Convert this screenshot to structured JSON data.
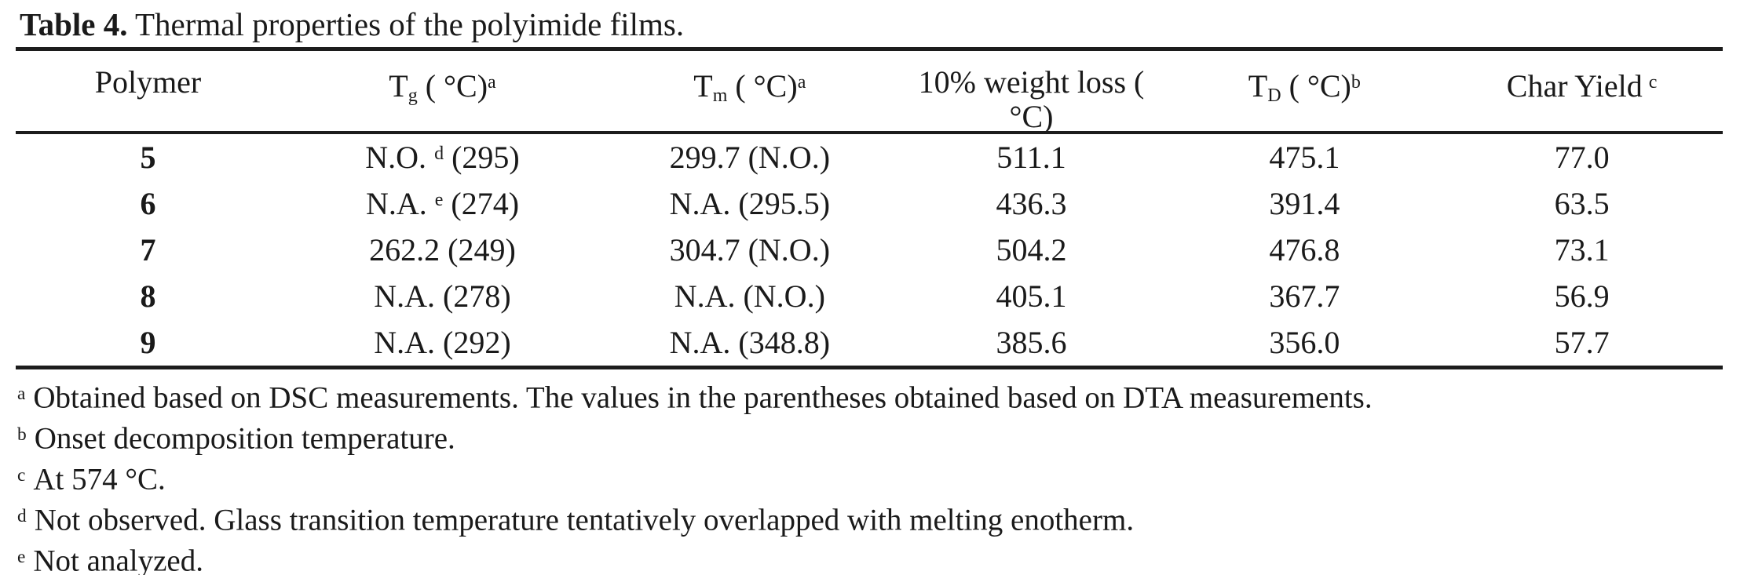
{
  "title": {
    "label": "Table 4.",
    "text": " Thermal properties of the polyimide films."
  },
  "table": {
    "columns": {
      "polymer": "Polymer",
      "tg": {
        "base": "T",
        "sub": "g",
        "mid": " ( °C)",
        "sup": "a"
      },
      "tm": {
        "base": "T",
        "sub": "m",
        "mid": " ( °C)",
        "sup": "a"
      },
      "weight_loss": {
        "line1": "10% weight loss (",
        "line2": "°C)"
      },
      "td": {
        "base": "T",
        "sub": "D",
        "mid": " ( °C)",
        "sup": "b"
      },
      "char_yield": {
        "label": "Char Yield",
        "sup": "c"
      }
    },
    "rows": [
      {
        "polymer": "5",
        "tg_pre": "N.O. ",
        "tg_sup": "d",
        "tg_post": " (295)",
        "tm": "299.7 (N.O.)",
        "weight_loss": "511.1",
        "td": "475.1",
        "char_yield": "77.0"
      },
      {
        "polymer": "6",
        "tg_pre": "N.A. ",
        "tg_sup": "e",
        "tg_post": " (274)",
        "tm": "N.A. (295.5)",
        "weight_loss": "436.3",
        "td": "391.4",
        "char_yield": "63.5"
      },
      {
        "polymer": "7",
        "tg_pre": "262.2 (249)",
        "tg_sup": "",
        "tg_post": "",
        "tm": "304.7 (N.O.)",
        "weight_loss": "504.2",
        "td": "476.8",
        "char_yield": "73.1"
      },
      {
        "polymer": "8",
        "tg_pre": "N.A. (278)",
        "tg_sup": "",
        "tg_post": "",
        "tm": "N.A. (N.O.)",
        "weight_loss": "405.1",
        "td": "367.7",
        "char_yield": "56.9"
      },
      {
        "polymer": "9",
        "tg_pre": "N.A. (292)",
        "tg_sup": "",
        "tg_post": "",
        "tm": "N.A. (348.8)",
        "weight_loss": "385.6",
        "td": "356.0",
        "char_yield": "57.7"
      }
    ]
  },
  "footnotes": [
    {
      "sup": "a",
      "text": "Obtained based on DSC measurements. The values in the parentheses obtained based on DTA measurements."
    },
    {
      "sup": "b",
      "text": "Onset decomposition temperature."
    },
    {
      "sup": "c",
      "text": "At 574 °C."
    },
    {
      "sup": "d",
      "text": "Not observed. Glass transition temperature tentatively overlapped with melting enotherm."
    },
    {
      "sup": "e",
      "text": "Not analyzed."
    }
  ]
}
